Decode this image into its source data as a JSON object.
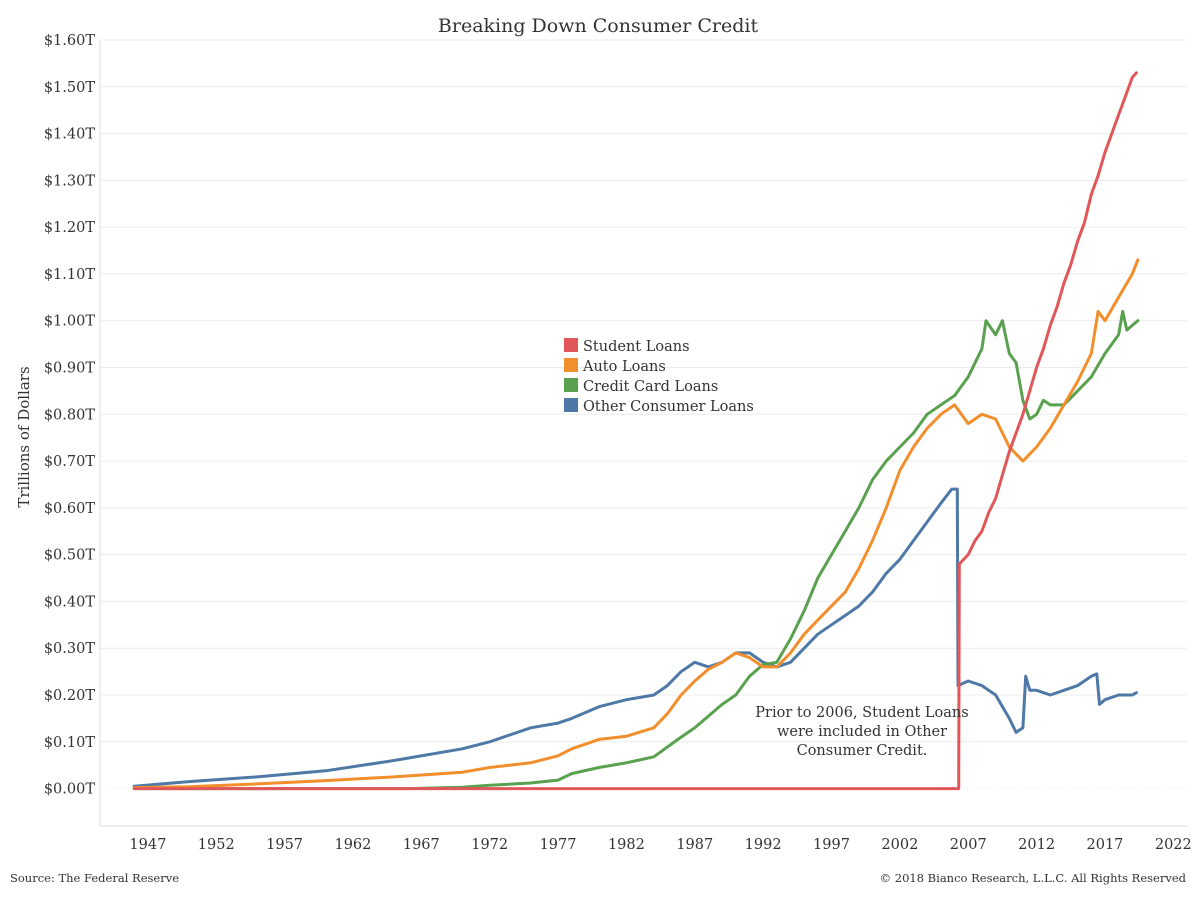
{
  "chart_data": {
    "type": "line",
    "title": "Breaking Down Consumer Credit",
    "xlabel": "",
    "ylabel": "Trillions of Dollars",
    "xlim": [
      1943.5,
      2023
    ],
    "ylim": [
      -0.08,
      1.6
    ],
    "x_ticks": [
      1947,
      1952,
      1957,
      1962,
      1967,
      1972,
      1977,
      1982,
      1987,
      1992,
      1997,
      2002,
      2007,
      2012,
      2017,
      2022
    ],
    "x_tick_labels": [
      "1947",
      "1952",
      "1957",
      "1962",
      "1967",
      "1972",
      "1977",
      "1982",
      "1987",
      "1992",
      "1997",
      "2002",
      "2007",
      "2012",
      "2017",
      "2022"
    ],
    "y_ticks": [
      0,
      0.1,
      0.2,
      0.3,
      0.4,
      0.5,
      0.6,
      0.7,
      0.8,
      0.9,
      1.0,
      1.1,
      1.2,
      1.3,
      1.4,
      1.5,
      1.6
    ],
    "y_tick_labels": [
      "$0.00T",
      "$0.10T",
      "$0.20T",
      "$0.30T",
      "$0.40T",
      "$0.50T",
      "$0.60T",
      "$0.70T",
      "$0.80T",
      "$0.90T",
      "$1.00T",
      "$1.10T",
      "$1.20T",
      "$1.30T",
      "$1.40T",
      "$1.50T",
      "$1.60T"
    ],
    "grid": "horizontal",
    "legend_position": "center",
    "series": [
      {
        "name": "Student Loans",
        "color": "#e15759",
        "points": [
          [
            1946,
            0
          ],
          [
            2006.3,
            0
          ],
          [
            2006.3,
            0
          ],
          [
            2006.35,
            0.48
          ],
          [
            2007,
            0.5
          ],
          [
            2007.5,
            0.53
          ],
          [
            2008,
            0.55
          ],
          [
            2008.5,
            0.59
          ],
          [
            2009,
            0.62
          ],
          [
            2009.5,
            0.67
          ],
          [
            2010,
            0.72
          ],
          [
            2010.5,
            0.76
          ],
          [
            2011,
            0.8
          ],
          [
            2011.5,
            0.85
          ],
          [
            2012,
            0.9
          ],
          [
            2012.5,
            0.94
          ],
          [
            2013,
            0.99
          ],
          [
            2013.5,
            1.03
          ],
          [
            2014,
            1.08
          ],
          [
            2014.5,
            1.12
          ],
          [
            2015,
            1.17
          ],
          [
            2015.5,
            1.21
          ],
          [
            2016,
            1.27
          ],
          [
            2016.5,
            1.31
          ],
          [
            2017,
            1.36
          ],
          [
            2017.5,
            1.4
          ],
          [
            2018,
            1.44
          ],
          [
            2018.5,
            1.48
          ],
          [
            2019,
            1.52
          ],
          [
            2019.3,
            1.53
          ]
        ]
      },
      {
        "name": "Auto Loans",
        "color": "#f28e2b",
        "points": [
          [
            1946,
            0.002
          ],
          [
            1950,
            0.004
          ],
          [
            1955,
            0.01
          ],
          [
            1960,
            0.017
          ],
          [
            1965,
            0.025
          ],
          [
            1970,
            0.035
          ],
          [
            1972,
            0.045
          ],
          [
            1975,
            0.055
          ],
          [
            1977,
            0.07
          ],
          [
            1978,
            0.085
          ],
          [
            1980,
            0.105
          ],
          [
            1982,
            0.112
          ],
          [
            1984,
            0.13
          ],
          [
            1985,
            0.16
          ],
          [
            1986,
            0.2
          ],
          [
            1987,
            0.23
          ],
          [
            1988,
            0.255
          ],
          [
            1989,
            0.27
          ],
          [
            1990,
            0.29
          ],
          [
            1991,
            0.28
          ],
          [
            1992,
            0.26
          ],
          [
            1993,
            0.26
          ],
          [
            1994,
            0.29
          ],
          [
            1995,
            0.33
          ],
          [
            1996,
            0.36
          ],
          [
            1997,
            0.39
          ],
          [
            1998,
            0.42
          ],
          [
            1999,
            0.47
          ],
          [
            2000,
            0.53
          ],
          [
            2001,
            0.6
          ],
          [
            2002,
            0.68
          ],
          [
            2003,
            0.73
          ],
          [
            2004,
            0.77
          ],
          [
            2005,
            0.8
          ],
          [
            2006,
            0.82
          ],
          [
            2006.5,
            0.8
          ],
          [
            2007,
            0.78
          ],
          [
            2008,
            0.8
          ],
          [
            2009,
            0.79
          ],
          [
            2010,
            0.73
          ],
          [
            2011,
            0.7
          ],
          [
            2012,
            0.73
          ],
          [
            2013,
            0.77
          ],
          [
            2014,
            0.82
          ],
          [
            2015,
            0.87
          ],
          [
            2016,
            0.93
          ],
          [
            2016.5,
            1.02
          ],
          [
            2017,
            1.0
          ],
          [
            2018,
            1.05
          ],
          [
            2019,
            1.1
          ],
          [
            2019.4,
            1.13
          ]
        ]
      },
      {
        "name": "Credit Card Loans",
        "color": "#59a14f",
        "points": [
          [
            1946,
            0
          ],
          [
            1966,
            0
          ],
          [
            1970,
            0.003
          ],
          [
            1972,
            0.007
          ],
          [
            1975,
            0.012
          ],
          [
            1977,
            0.018
          ],
          [
            1978,
            0.032
          ],
          [
            1980,
            0.045
          ],
          [
            1982,
            0.055
          ],
          [
            1984,
            0.068
          ],
          [
            1986,
            0.11
          ],
          [
            1987,
            0.13
          ],
          [
            1988,
            0.155
          ],
          [
            1989,
            0.18
          ],
          [
            1990,
            0.2
          ],
          [
            1991,
            0.24
          ],
          [
            1992,
            0.265
          ],
          [
            1993,
            0.27
          ],
          [
            1994,
            0.32
          ],
          [
            1995,
            0.38
          ],
          [
            1996,
            0.45
          ],
          [
            1997,
            0.5
          ],
          [
            1998,
            0.55
          ],
          [
            1999,
            0.6
          ],
          [
            2000,
            0.66
          ],
          [
            2001,
            0.7
          ],
          [
            2002,
            0.73
          ],
          [
            2003,
            0.76
          ],
          [
            2004,
            0.8
          ],
          [
            2005,
            0.82
          ],
          [
            2006,
            0.84
          ],
          [
            2007,
            0.88
          ],
          [
            2008,
            0.94
          ],
          [
            2008.3,
            1.0
          ],
          [
            2009,
            0.97
          ],
          [
            2009.5,
            1.0
          ],
          [
            2010,
            0.93
          ],
          [
            2010.5,
            0.91
          ],
          [
            2011,
            0.83
          ],
          [
            2011.5,
            0.79
          ],
          [
            2012,
            0.8
          ],
          [
            2012.5,
            0.83
          ],
          [
            2013,
            0.82
          ],
          [
            2014,
            0.82
          ],
          [
            2015,
            0.85
          ],
          [
            2016,
            0.88
          ],
          [
            2017,
            0.93
          ],
          [
            2018,
            0.97
          ],
          [
            2018.3,
            1.02
          ],
          [
            2018.6,
            0.98
          ],
          [
            2019,
            0.99
          ],
          [
            2019.4,
            1.0
          ]
        ]
      },
      {
        "name": "Other Consumer Loans",
        "color": "#4e79a7",
        "points": [
          [
            1946,
            0.005
          ],
          [
            1950,
            0.015
          ],
          [
            1955,
            0.025
          ],
          [
            1960,
            0.038
          ],
          [
            1965,
            0.06
          ],
          [
            1970,
            0.085
          ],
          [
            1972,
            0.1
          ],
          [
            1975,
            0.13
          ],
          [
            1977,
            0.14
          ],
          [
            1978,
            0.15
          ],
          [
            1980,
            0.175
          ],
          [
            1982,
            0.19
          ],
          [
            1984,
            0.2
          ],
          [
            1985,
            0.22
          ],
          [
            1986,
            0.25
          ],
          [
            1987,
            0.27
          ],
          [
            1988,
            0.26
          ],
          [
            1989,
            0.27
          ],
          [
            1990,
            0.29
          ],
          [
            1991,
            0.29
          ],
          [
            1992,
            0.27
          ],
          [
            1993,
            0.26
          ],
          [
            1994,
            0.27
          ],
          [
            1995,
            0.3
          ],
          [
            1996,
            0.33
          ],
          [
            1997,
            0.35
          ],
          [
            1998,
            0.37
          ],
          [
            1999,
            0.39
          ],
          [
            2000,
            0.42
          ],
          [
            2001,
            0.46
          ],
          [
            2002,
            0.49
          ],
          [
            2003,
            0.53
          ],
          [
            2004,
            0.57
          ],
          [
            2005,
            0.61
          ],
          [
            2005.8,
            0.64
          ],
          [
            2006.2,
            0.64
          ],
          [
            2006.25,
            0.22
          ],
          [
            2007,
            0.23
          ],
          [
            2008,
            0.22
          ],
          [
            2009,
            0.2
          ],
          [
            2010,
            0.15
          ],
          [
            2010.5,
            0.12
          ],
          [
            2011,
            0.13
          ],
          [
            2011.2,
            0.24
          ],
          [
            2011.5,
            0.21
          ],
          [
            2012,
            0.21
          ],
          [
            2013,
            0.2
          ],
          [
            2014,
            0.21
          ],
          [
            2015,
            0.22
          ],
          [
            2016,
            0.24
          ],
          [
            2016.4,
            0.245
          ],
          [
            2016.6,
            0.18
          ],
          [
            2017,
            0.19
          ],
          [
            2018,
            0.2
          ],
          [
            2018.5,
            0.2
          ],
          [
            2019,
            0.2
          ],
          [
            2019.3,
            0.205
          ]
        ]
      }
    ]
  },
  "annotation": {
    "lines": [
      "Prior to 2006, Student Loans",
      "were included in Other",
      "Consumer Credit."
    ]
  },
  "footer": {
    "source": "Source: The Federal Reserve",
    "copyright": "© 2018 Bianco Research, L.L.C. All Rights Reserved"
  }
}
